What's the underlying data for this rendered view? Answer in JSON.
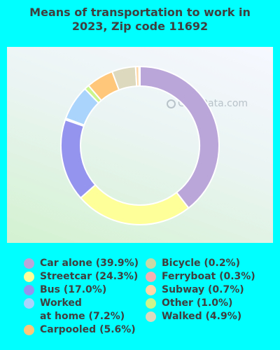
{
  "title_lines": [
    "Means of transportation to work in",
    "2023, Zip code 11692"
  ],
  "watermark": "City-Data.com",
  "chart_data": {
    "type": "donut",
    "title": "Means of transportation to work in 2023, Zip code 11692",
    "slices": [
      {
        "label": "Car alone",
        "value": 39.9,
        "color": "#bba6d9"
      },
      {
        "label": "Streetcar",
        "value": 24.3,
        "color": "#ffff99"
      },
      {
        "label": "Bus",
        "value": 17.0,
        "color": "#9494ef"
      },
      {
        "label": "Ferryboat",
        "value": 0.3,
        "color": "#f4b0b0"
      },
      {
        "label": "Worked at home",
        "value": 7.2,
        "color": "#aad4fb"
      },
      {
        "label": "Other",
        "value": 1.0,
        "color": "#ccf58c"
      },
      {
        "label": "Carpooled",
        "value": 5.6,
        "color": "#ffc77a"
      },
      {
        "label": "Walked",
        "value": 4.9,
        "color": "#ddd9bf"
      },
      {
        "label": "Subway",
        "value": 0.7,
        "color": "#ffd7a6"
      },
      {
        "label": "Bicycle",
        "value": 0.2,
        "color": "#c8d9a6"
      }
    ]
  },
  "legend": {
    "left": [
      {
        "lines": [
          "Car alone (39.9%)"
        ],
        "color": "#bba6d9"
      },
      {
        "lines": [
          "Streetcar (24.3%)"
        ],
        "color": "#ffff99"
      },
      {
        "lines": [
          "Bus (17.0%)"
        ],
        "color": "#9494ef"
      },
      {
        "lines": [
          "Worked",
          "at home (7.2%)"
        ],
        "color": "#aad4fb"
      },
      {
        "lines": [
          "Carpooled (5.6%)"
        ],
        "color": "#ffc77a"
      }
    ],
    "right": [
      {
        "lines": [
          "Bicycle (0.2%)"
        ],
        "color": "#c8d9a6"
      },
      {
        "lines": [
          "Ferryboat (0.3%)"
        ],
        "color": "#f4b0b0"
      },
      {
        "lines": [
          "Subway (0.7%)"
        ],
        "color": "#ffd7a6"
      },
      {
        "lines": [
          "Other (1.0%)"
        ],
        "color": "#ccf58c"
      },
      {
        "lines": [
          "Walked (4.9%)"
        ],
        "color": "#ddd9bf"
      }
    ]
  }
}
